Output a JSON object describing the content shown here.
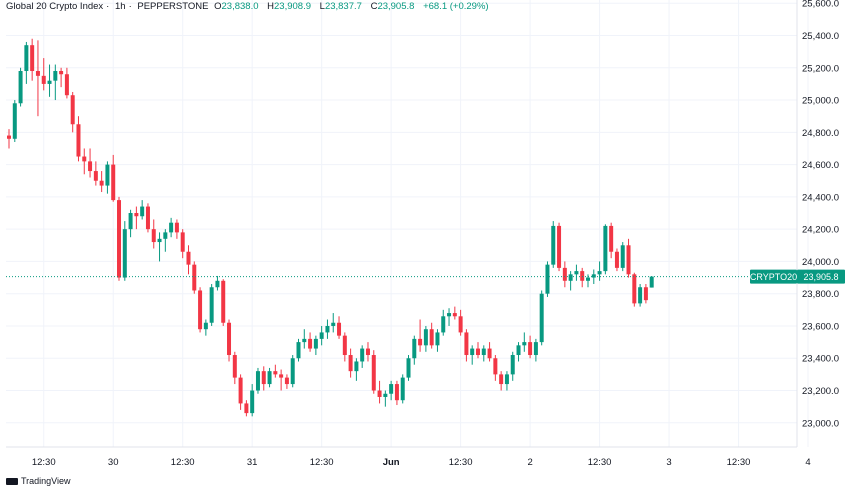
{
  "header": {
    "symbol": "Global 20 Crypto Index",
    "interval": "1h",
    "exchange": "PEPPERSTONE",
    "ohlc": {
      "o_label": "O",
      "o": "23,838.0",
      "h_label": "H",
      "h": "23,908.9",
      "l_label": "L",
      "l": "23,837.7",
      "c_label": "C",
      "c": "23,905.8"
    },
    "change": "+68.1 (+0.29%)"
  },
  "watermark": "TradingView",
  "colors": {
    "up": "#089981",
    "down": "#f23645",
    "grid": "#f0f3fa",
    "axis_text": "#131722",
    "last_price_line": "#089981"
  },
  "chart_data": {
    "type": "candlestick",
    "yaxis": {
      "position": "right",
      "range": [
        22850,
        25620
      ],
      "ticks": [
        "25,600.0",
        "25,400.0",
        "25,200.0",
        "25,000.0",
        "24,800.0",
        "24,600.0",
        "24,400.0",
        "24,200.0",
        "24,000.0",
        "23,800.0",
        "23,600.0",
        "23,400.0",
        "23,200.0",
        "23,000.0"
      ],
      "tick_values": [
        25600,
        25400,
        25200,
        25000,
        24800,
        24600,
        24400,
        24200,
        24000,
        23800,
        23600,
        23400,
        23200,
        23000
      ]
    },
    "xaxis": {
      "labels": [
        "12:30",
        "30",
        "12:30",
        "31",
        "12:30",
        "Jun",
        "12:30",
        "2",
        "12:30",
        "3",
        "12:30",
        "4",
        "12:30"
      ],
      "bold": [
        false,
        false,
        false,
        false,
        false,
        true,
        false,
        false,
        false,
        false,
        false,
        false,
        false
      ],
      "label_bar_index": [
        6,
        18,
        30,
        42,
        54,
        66,
        78,
        90,
        102,
        114,
        126,
        138,
        150
      ]
    },
    "grid": true,
    "last_price": {
      "label": "CRYPTO20",
      "value": 23905.8,
      "value_text": "23,905.8"
    },
    "candles": [
      [
        24780,
        24820,
        24700,
        24760
      ],
      [
        24760,
        25000,
        24740,
        24980
      ],
      [
        24980,
        25200,
        24960,
        25180
      ],
      [
        25180,
        25360,
        25100,
        25340
      ],
      [
        25340,
        25380,
        25120,
        25180
      ],
      [
        25180,
        25370,
        24900,
        25150
      ],
      [
        25150,
        25260,
        25060,
        25100
      ],
      [
        25100,
        25220,
        25020,
        25120
      ],
      [
        25120,
        25220,
        25000,
        25180
      ],
      [
        25180,
        25200,
        25080,
        25160
      ],
      [
        25160,
        25200,
        25010,
        25030
      ],
      [
        25030,
        25050,
        24800,
        24850
      ],
      [
        24850,
        24900,
        24620,
        24650
      ],
      [
        24650,
        24700,
        24540,
        24620
      ],
      [
        24620,
        24700,
        24520,
        24560
      ],
      [
        24560,
        24620,
        24470,
        24500
      ],
      [
        24500,
        24560,
        24430,
        24470
      ],
      [
        24470,
        24620,
        24420,
        24600
      ],
      [
        24600,
        24660,
        24370,
        24380
      ],
      [
        24380,
        24400,
        23880,
        23900
      ],
      [
        23900,
        24250,
        23880,
        24200
      ],
      [
        24200,
        24320,
        24150,
        24300
      ],
      [
        24300,
        24340,
        24200,
        24280
      ],
      [
        24280,
        24380,
        24260,
        24340
      ],
      [
        24340,
        24360,
        24180,
        24200
      ],
      [
        24200,
        24260,
        24080,
        24120
      ],
      [
        24120,
        24180,
        24000,
        24140
      ],
      [
        24140,
        24200,
        24060,
        24180
      ],
      [
        24180,
        24270,
        24150,
        24240
      ],
      [
        24240,
        24260,
        24140,
        24180
      ],
      [
        24180,
        24200,
        24020,
        24060
      ],
      [
        24060,
        24100,
        23920,
        23980
      ],
      [
        23980,
        24000,
        23800,
        23820
      ],
      [
        23820,
        23840,
        23560,
        23580
      ],
      [
        23580,
        23640,
        23540,
        23620
      ],
      [
        23620,
        23860,
        23600,
        23840
      ],
      [
        23840,
        23910,
        23820,
        23880
      ],
      [
        23880,
        23890,
        23600,
        23620
      ],
      [
        23620,
        23640,
        23380,
        23420
      ],
      [
        23420,
        23440,
        23240,
        23280
      ],
      [
        23280,
        23300,
        23080,
        23120
      ],
      [
        23120,
        23140,
        23040,
        23060
      ],
      [
        23060,
        23240,
        23040,
        23200
      ],
      [
        23200,
        23340,
        23180,
        23320
      ],
      [
        23320,
        23350,
        23200,
        23240
      ],
      [
        23240,
        23340,
        23220,
        23320
      ],
      [
        23320,
        23360,
        23280,
        23300
      ],
      [
        23300,
        23330,
        23200,
        23280
      ],
      [
        23280,
        23300,
        23210,
        23240
      ],
      [
        23240,
        23420,
        23220,
        23400
      ],
      [
        23400,
        23520,
        23380,
        23500
      ],
      [
        23500,
        23580,
        23460,
        23520
      ],
      [
        23520,
        23560,
        23440,
        23460
      ],
      [
        23460,
        23540,
        23420,
        23520
      ],
      [
        23520,
        23600,
        23480,
        23560
      ],
      [
        23560,
        23640,
        23520,
        23600
      ],
      [
        23600,
        23680,
        23560,
        23620
      ],
      [
        23620,
        23660,
        23520,
        23540
      ],
      [
        23540,
        23560,
        23380,
        23420
      ],
      [
        23420,
        23460,
        23280,
        23320
      ],
      [
        23320,
        23400,
        23260,
        23380
      ],
      [
        23380,
        23480,
        23340,
        23460
      ],
      [
        23460,
        23500,
        23380,
        23420
      ],
      [
        23420,
        23450,
        23180,
        23200
      ],
      [
        23200,
        23260,
        23120,
        23160
      ],
      [
        23160,
        23200,
        23100,
        23180
      ],
      [
        23180,
        23260,
        23140,
        23240
      ],
      [
        23240,
        23260,
        23110,
        23140
      ],
      [
        23140,
        23300,
        23120,
        23280
      ],
      [
        23280,
        23420,
        23260,
        23400
      ],
      [
        23400,
        23540,
        23360,
        23520
      ],
      [
        23520,
        23640,
        23440,
        23480
      ],
      [
        23480,
        23600,
        23440,
        23580
      ],
      [
        23580,
        23620,
        23460,
        23480
      ],
      [
        23480,
        23580,
        23440,
        23560
      ],
      [
        23560,
        23700,
        23540,
        23660
      ],
      [
        23660,
        23710,
        23600,
        23680
      ],
      [
        23680,
        23720,
        23640,
        23660
      ],
      [
        23660,
        23700,
        23540,
        23560
      ],
      [
        23560,
        23580,
        23380,
        23420
      ],
      [
        23420,
        23480,
        23360,
        23460
      ],
      [
        23460,
        23500,
        23400,
        23420
      ],
      [
        23420,
        23480,
        23380,
        23460
      ],
      [
        23460,
        23500,
        23380,
        23400
      ],
      [
        23400,
        23420,
        23260,
        23300
      ],
      [
        23300,
        23320,
        23200,
        23240
      ],
      [
        23240,
        23320,
        23200,
        23300
      ],
      [
        23300,
        23440,
        23260,
        23420
      ],
      [
        23420,
        23500,
        23380,
        23480
      ],
      [
        23480,
        23560,
        23440,
        23500
      ],
      [
        23500,
        23540,
        23400,
        23420
      ],
      [
        23420,
        23520,
        23380,
        23500
      ],
      [
        23500,
        23820,
        23480,
        23800
      ],
      [
        23800,
        24000,
        23780,
        23980
      ],
      [
        23980,
        24250,
        23960,
        24220
      ],
      [
        24220,
        24240,
        23940,
        23960
      ],
      [
        23960,
        24000,
        23840,
        23880
      ],
      [
        23880,
        23940,
        23820,
        23920
      ],
      [
        23920,
        23980,
        23880,
        23940
      ],
      [
        23940,
        23960,
        23840,
        23880
      ],
      [
        23880,
        23920,
        23840,
        23900
      ],
      [
        23900,
        23950,
        23860,
        23920
      ],
      [
        23920,
        24000,
        23880,
        23940
      ],
      [
        23940,
        24230,
        23920,
        24220
      ],
      [
        24220,
        24240,
        24020,
        24060
      ],
      [
        24060,
        24080,
        23940,
        23960
      ],
      [
        23960,
        24120,
        23940,
        24100
      ],
      [
        24100,
        24140,
        23900,
        23920
      ],
      [
        23920,
        23930,
        23720,
        23740
      ],
      [
        23740,
        23860,
        23720,
        23840
      ],
      [
        23840,
        23860,
        23740,
        23760
      ],
      [
        23838,
        23909,
        23838,
        23906
      ]
    ]
  }
}
